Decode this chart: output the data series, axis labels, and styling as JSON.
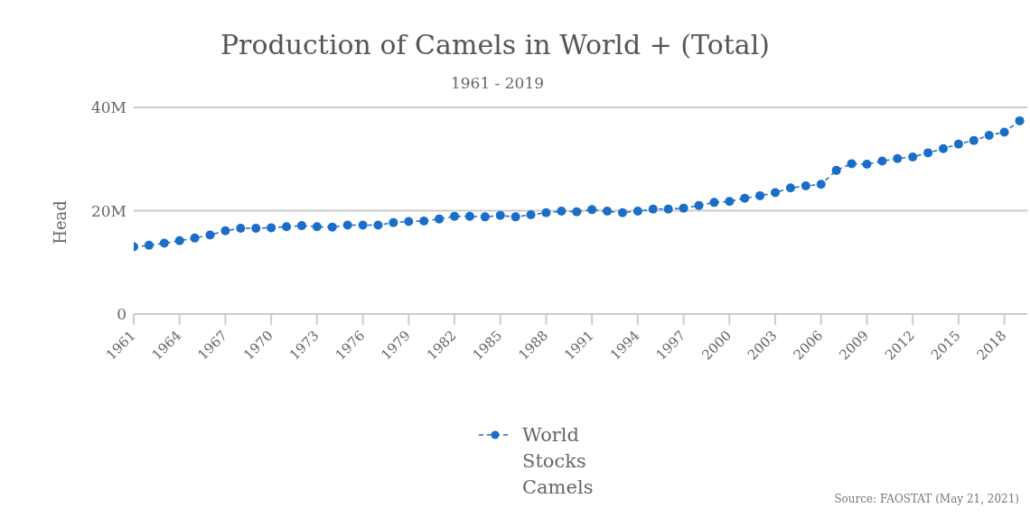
{
  "chart_data": {
    "type": "line",
    "title": "Production of Camels in World + (Total)",
    "subtitle": "1961 - 2019",
    "ylabel": "Head",
    "x": [
      1961,
      1962,
      1963,
      1964,
      1965,
      1966,
      1967,
      1968,
      1969,
      1970,
      1971,
      1972,
      1973,
      1974,
      1975,
      1976,
      1977,
      1978,
      1979,
      1980,
      1981,
      1982,
      1983,
      1984,
      1985,
      1986,
      1987,
      1988,
      1989,
      1990,
      1991,
      1992,
      1993,
      1994,
      1995,
      1996,
      1997,
      1998,
      1999,
      2000,
      2001,
      2002,
      2003,
      2004,
      2005,
      2006,
      2007,
      2008,
      2009,
      2010,
      2011,
      2012,
      2013,
      2014,
      2015,
      2016,
      2017,
      2018,
      2019
    ],
    "series": [
      {
        "name": "World Stocks Camels",
        "color": "#1a6ec8",
        "values": [
          13.0,
          13.3,
          13.7,
          14.2,
          14.7,
          15.3,
          16.1,
          16.6,
          16.6,
          16.7,
          16.9,
          17.1,
          16.9,
          16.8,
          17.2,
          17.2,
          17.2,
          17.7,
          17.9,
          18.0,
          18.4,
          18.9,
          18.9,
          18.8,
          19.1,
          18.8,
          19.2,
          19.6,
          19.9,
          19.8,
          20.2,
          19.9,
          19.6,
          19.9,
          20.3,
          20.3,
          20.5,
          21.0,
          21.6,
          21.8,
          22.4,
          22.9,
          23.5,
          24.4,
          24.8,
          25.1,
          27.8,
          29.1,
          29.0,
          29.6,
          30.1,
          30.4,
          31.2,
          32.0,
          32.9,
          33.6,
          34.6,
          35.2,
          37.4
        ]
      }
    ],
    "xlim": [
      1961,
      2019.5
    ],
    "xticks": [
      1961,
      1964,
      1967,
      1970,
      1973,
      1976,
      1979,
      1982,
      1985,
      1988,
      1991,
      1994,
      1997,
      2000,
      2003,
      2006,
      2009,
      2012,
      2015,
      2018
    ],
    "ylim": [
      0,
      40
    ],
    "yticks": [
      {
        "value": 0,
        "label": "0"
      },
      {
        "value": 20,
        "label": "20M"
      },
      {
        "value": 40,
        "label": "40M"
      }
    ],
    "grid": "y",
    "legend": "bottom",
    "marker": "circle",
    "line_style": "dashed",
    "annotations": [
      "Source: FAOSTAT (May 21, 2021)"
    ]
  }
}
